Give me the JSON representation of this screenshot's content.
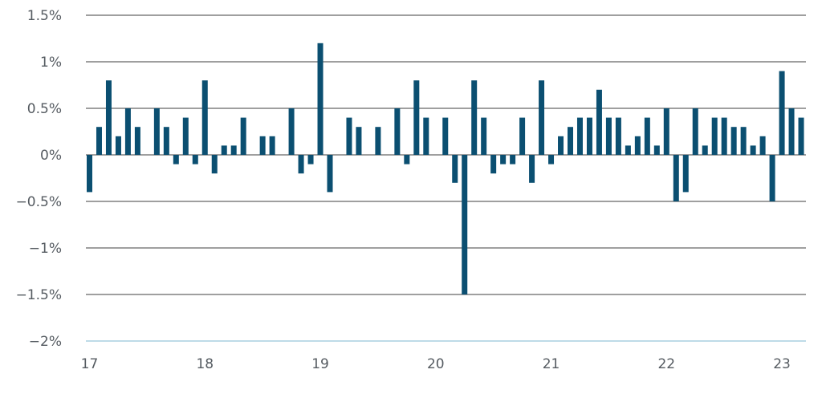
{
  "chart_data": {
    "type": "bar",
    "title": "",
    "xlabel": "",
    "ylabel": "",
    "ylim": [
      -2,
      1.5
    ],
    "y_ticks": [
      {
        "value": 1.5,
        "label": "1.5%"
      },
      {
        "value": 1,
        "label": "1%"
      },
      {
        "value": 0.5,
        "label": "0.5%"
      },
      {
        "value": 0,
        "label": "0%"
      },
      {
        "value": -0.5,
        "label": "−0.5%"
      },
      {
        "value": -1,
        "label": "−1%"
      },
      {
        "value": -1.5,
        "label": "−1.5%"
      },
      {
        "value": -2,
        "label": "−2%"
      }
    ],
    "x_ticks": [
      {
        "index": 0,
        "label": "17"
      },
      {
        "index": 12,
        "label": "18"
      },
      {
        "index": 24,
        "label": "19"
      },
      {
        "index": 36,
        "label": "20"
      },
      {
        "index": 48,
        "label": "21"
      },
      {
        "index": 60,
        "label": "22"
      },
      {
        "index": 72,
        "label": "23"
      }
    ],
    "grid": true,
    "colors": {
      "bar": "#0b4f71",
      "grid": "#666666",
      "bottom_axis": "#a9cfe0",
      "text": "#555b61"
    },
    "values": [
      -0.4,
      0.3,
      0.8,
      0.2,
      0.5,
      0.3,
      0.0,
      0.5,
      0.3,
      -0.1,
      0.4,
      -0.1,
      0.8,
      -0.2,
      0.1,
      0.1,
      0.4,
      0.0,
      0.2,
      0.2,
      0.0,
      0.5,
      -0.2,
      -0.1,
      1.2,
      -0.4,
      0.0,
      0.4,
      0.3,
      0.0,
      0.3,
      0.0,
      0.5,
      -0.1,
      0.8,
      0.4,
      0.0,
      0.4,
      -0.3,
      -1.5,
      0.8,
      0.4,
      -0.2,
      -0.1,
      -0.1,
      0.4,
      -0.3,
      0.8,
      -0.1,
      0.2,
      0.3,
      0.4,
      0.4,
      0.7,
      0.4,
      0.4,
      0.1,
      0.2,
      0.4,
      0.1,
      0.5,
      -0.5,
      -0.4,
      0.5,
      0.1,
      0.4,
      0.4,
      0.3,
      0.3,
      0.1,
      0.2,
      -0.5,
      0.9,
      0.5,
      0.4
    ]
  }
}
